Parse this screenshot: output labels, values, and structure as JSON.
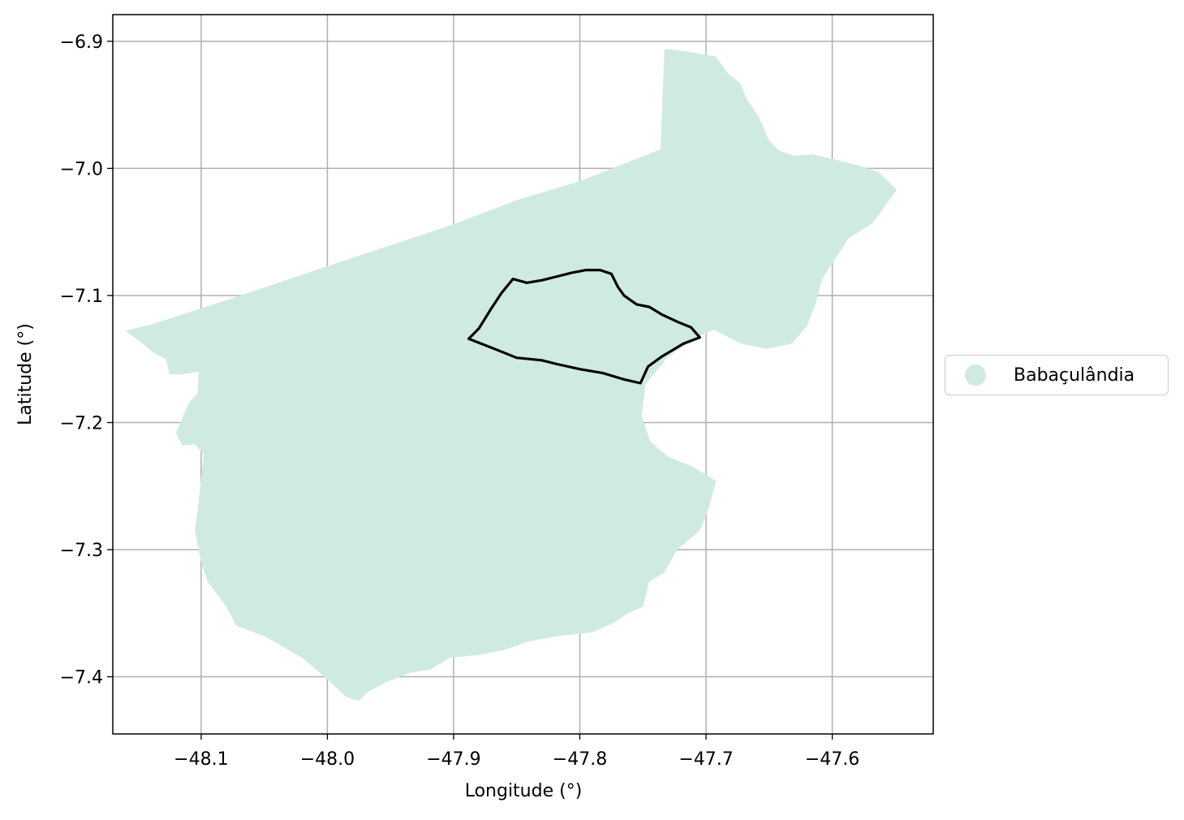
{
  "map": {
    "xlabel": "Longitude (°)",
    "ylabel": "Latitude (°)",
    "xlim": [
      -48.17,
      -47.52
    ],
    "ylim": [
      -7.445,
      -6.879
    ],
    "x_ticks": [
      -48.1,
      -48.0,
      -47.9,
      -47.8,
      -47.7,
      -47.6
    ],
    "y_ticks": [
      -6.9,
      -7.0,
      -7.1,
      -7.2,
      -7.3,
      -7.4
    ],
    "x_tick_labels": [
      "−48.1",
      "−48.0",
      "−47.9",
      "−47.8",
      "−47.7",
      "−47.6"
    ],
    "y_tick_labels": [
      "−6.9",
      "−7.0",
      "−7.1",
      "−7.2",
      "−7.3",
      "−7.4"
    ],
    "grid": true,
    "legend_position": "right-center",
    "colors": {
      "region_fill": "#cfebdf",
      "outline": "#000000",
      "grid": "#b0b0b0"
    }
  },
  "legend": {
    "items": [
      {
        "label": "Babaçulândia",
        "color": "#cfebdf"
      }
    ]
  },
  "chart_data": {
    "type": "map",
    "regions": [
      {
        "name": "Babaçulândia",
        "style": "fill",
        "color": "#cfebdf",
        "coords": [
          [
            -47.733,
            -6.906
          ],
          [
            -47.715,
            -6.908
          ],
          [
            -47.692,
            -6.912
          ],
          [
            -47.683,
            -6.925
          ],
          [
            -47.673,
            -6.933
          ],
          [
            -47.668,
            -6.945
          ],
          [
            -47.658,
            -6.96
          ],
          [
            -47.65,
            -6.978
          ],
          [
            -47.642,
            -6.986
          ],
          [
            -47.63,
            -6.99
          ],
          [
            -47.615,
            -6.989
          ],
          [
            -47.598,
            -6.993
          ],
          [
            -47.575,
            -6.999
          ],
          [
            -47.563,
            -7.003
          ],
          [
            -47.549,
            -7.017
          ],
          [
            -47.568,
            -7.043
          ],
          [
            -47.587,
            -7.055
          ],
          [
            -47.597,
            -7.07
          ],
          [
            -47.608,
            -7.087
          ],
          [
            -47.613,
            -7.106
          ],
          [
            -47.62,
            -7.124
          ],
          [
            -47.632,
            -7.138
          ],
          [
            -47.652,
            -7.142
          ],
          [
            -47.672,
            -7.138
          ],
          [
            -47.694,
            -7.127
          ],
          [
            -47.71,
            -7.134
          ],
          [
            -47.73,
            -7.148
          ],
          [
            -47.748,
            -7.17
          ],
          [
            -47.751,
            -7.195
          ],
          [
            -47.744,
            -7.215
          ],
          [
            -47.73,
            -7.227
          ],
          [
            -47.71,
            -7.235
          ],
          [
            -47.692,
            -7.246
          ],
          [
            -47.698,
            -7.268
          ],
          [
            -47.705,
            -7.285
          ],
          [
            -47.723,
            -7.3
          ],
          [
            -47.733,
            -7.318
          ],
          [
            -47.745,
            -7.325
          ],
          [
            -47.75,
            -7.345
          ],
          [
            -47.762,
            -7.35
          ],
          [
            -47.772,
            -7.357
          ],
          [
            -47.79,
            -7.365
          ],
          [
            -47.818,
            -7.368
          ],
          [
            -47.84,
            -7.372
          ],
          [
            -47.86,
            -7.379
          ],
          [
            -47.88,
            -7.383
          ],
          [
            -47.903,
            -7.385
          ],
          [
            -47.918,
            -7.394
          ],
          [
            -47.935,
            -7.397
          ],
          [
            -47.955,
            -7.405
          ],
          [
            -47.968,
            -7.412
          ],
          [
            -47.975,
            -7.419
          ],
          [
            -47.985,
            -7.416
          ],
          [
            -48.0,
            -7.402
          ],
          [
            -48.02,
            -7.385
          ],
          [
            -48.05,
            -7.368
          ],
          [
            -48.072,
            -7.36
          ],
          [
            -48.08,
            -7.345
          ],
          [
            -48.095,
            -7.325
          ],
          [
            -48.1,
            -7.31
          ],
          [
            -48.105,
            -7.285
          ],
          [
            -48.102,
            -7.262
          ],
          [
            -48.098,
            -7.225
          ],
          [
            -48.105,
            -7.217
          ],
          [
            -48.115,
            -7.218
          ],
          [
            -48.12,
            -7.208
          ],
          [
            -48.11,
            -7.185
          ],
          [
            -48.103,
            -7.177
          ],
          [
            -48.102,
            -7.16
          ],
          [
            -48.115,
            -7.162
          ],
          [
            -48.125,
            -7.162
          ],
          [
            -48.128,
            -7.15
          ],
          [
            -48.138,
            -7.145
          ],
          [
            -48.15,
            -7.135
          ],
          [
            -48.16,
            -7.128
          ],
          [
            -48.137,
            -7.122
          ],
          [
            -48.09,
            -7.107
          ],
          [
            -48.0,
            -7.077
          ],
          [
            -47.9,
            -7.044
          ],
          [
            -47.85,
            -7.025
          ],
          [
            -47.8,
            -7.01
          ],
          [
            -47.736,
            -6.985
          ]
        ]
      },
      {
        "name": "",
        "style": "outline",
        "color": "#000000",
        "coords": [
          [
            -47.888,
            -7.134
          ],
          [
            -47.88,
            -7.126
          ],
          [
            -47.87,
            -7.11
          ],
          [
            -47.862,
            -7.098
          ],
          [
            -47.853,
            -7.087
          ],
          [
            -47.842,
            -7.09
          ],
          [
            -47.83,
            -7.088
          ],
          [
            -47.818,
            -7.085
          ],
          [
            -47.806,
            -7.082
          ],
          [
            -47.795,
            -7.08
          ],
          [
            -47.784,
            -7.08
          ],
          [
            -47.775,
            -7.083
          ],
          [
            -47.77,
            -7.093
          ],
          [
            -47.765,
            -7.1
          ],
          [
            -47.755,
            -7.107
          ],
          [
            -47.745,
            -7.109
          ],
          [
            -47.735,
            -7.115
          ],
          [
            -47.722,
            -7.121
          ],
          [
            -47.712,
            -7.125
          ],
          [
            -47.705,
            -7.133
          ],
          [
            -47.718,
            -7.138
          ],
          [
            -47.735,
            -7.148
          ],
          [
            -47.746,
            -7.156
          ],
          [
            -47.752,
            -7.169
          ],
          [
            -47.765,
            -7.166
          ],
          [
            -47.782,
            -7.161
          ],
          [
            -47.8,
            -7.158
          ],
          [
            -47.818,
            -7.154
          ],
          [
            -47.83,
            -7.151
          ],
          [
            -47.84,
            -7.15
          ],
          [
            -47.85,
            -7.149
          ],
          [
            -47.865,
            -7.143
          ],
          [
            -47.888,
            -7.134
          ]
        ]
      }
    ],
    "xlabel": "Longitude (°)",
    "ylabel": "Latitude (°)",
    "xlim": [
      -48.17,
      -47.52
    ],
    "ylim": [
      -7.445,
      -6.879
    ],
    "grid": true,
    "legend": [
      "Babaçulândia"
    ]
  }
}
